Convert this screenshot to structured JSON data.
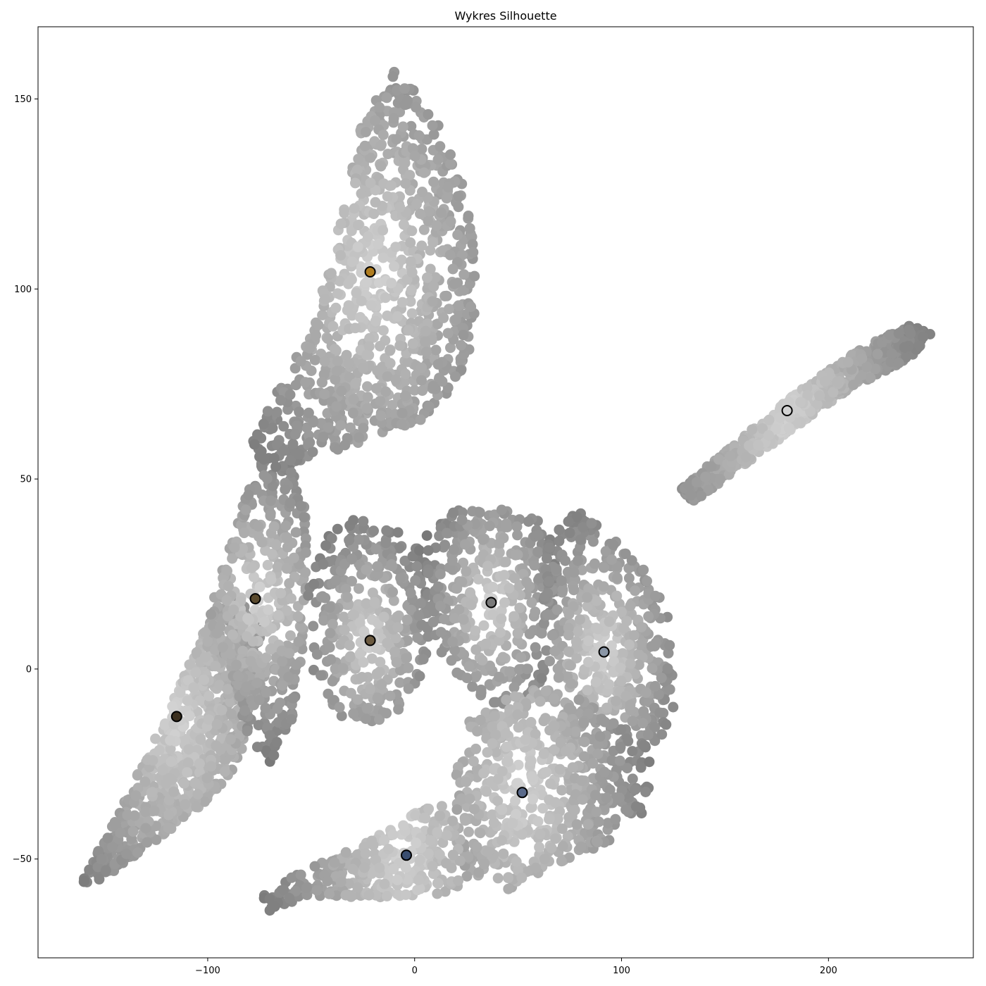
{
  "chart_data": {
    "type": "scatter",
    "title": "Wykres Silhouette",
    "xlabel": "",
    "ylabel": "",
    "xlim": [
      -182,
      270
    ],
    "ylim": [
      -76,
      169
    ],
    "xticks": [
      -100,
      0,
      100,
      200
    ],
    "yticks": [
      -50,
      0,
      50,
      100,
      150
    ],
    "xtick_labels": [
      "−100",
      "0",
      "100",
      "200"
    ],
    "ytick_labels": [
      "−50",
      "0",
      "50",
      "100",
      "150"
    ],
    "grid": false,
    "legend": "none",
    "point_color_encoding": "grayscale by silhouette value (light = high, dark = low)",
    "centroids": [
      {
        "x": -115,
        "y": -12.5,
        "color": "#3b2f1e"
      },
      {
        "x": -77,
        "y": 18.5,
        "color": "#5a4a2e"
      },
      {
        "x": -21.5,
        "y": 104.5,
        "color": "#b07d20"
      },
      {
        "x": -21.5,
        "y": 7.5,
        "color": "#6b5a40"
      },
      {
        "x": 37,
        "y": 17.5,
        "color": "#7a7a7a"
      },
      {
        "x": 91.5,
        "y": 4.5,
        "color": "#8a96a6"
      },
      {
        "x": 52,
        "y": -32.5,
        "color": "#5a6a8a"
      },
      {
        "x": -4,
        "y": -49,
        "color": "#3a4e70"
      },
      {
        "x": 180,
        "y": 68,
        "color": "#d2d2d2"
      }
    ],
    "clusters": [
      {
        "polygon": [
          [
            -165,
            -58
          ],
          [
            -145,
            -40
          ],
          [
            -118,
            -10
          ],
          [
            -100,
            12
          ],
          [
            -85,
            20
          ],
          [
            -74,
            10
          ],
          [
            -78,
            -10
          ],
          [
            -85,
            -25
          ],
          [
            -100,
            -35
          ],
          [
            -125,
            -45
          ],
          [
            -150,
            -55
          ]
        ],
        "center": [
          -115,
          -12
        ]
      },
      {
        "polygon": [
          [
            -100,
            15
          ],
          [
            -85,
            40
          ],
          [
            -75,
            55
          ],
          [
            -60,
            55
          ],
          [
            -52,
            40
          ],
          [
            -52,
            20
          ],
          [
            -55,
            0
          ],
          [
            -60,
            -15
          ],
          [
            -70,
            -25
          ],
          [
            -80,
            -18
          ],
          [
            -90,
            0
          ]
        ],
        "center": [
          -75,
          18
        ]
      },
      {
        "polygon": [
          [
            -52,
            20
          ],
          [
            -45,
            35
          ],
          [
            -30,
            40
          ],
          [
            -10,
            38
          ],
          [
            5,
            30
          ],
          [
            8,
            10
          ],
          [
            2,
            -5
          ],
          [
            -10,
            -12
          ],
          [
            -25,
            -15
          ],
          [
            -40,
            -12
          ],
          [
            -50,
            0
          ]
        ],
        "center": [
          -22,
          8
        ]
      },
      {
        "polygon": [
          [
            5,
            35
          ],
          [
            20,
            42
          ],
          [
            45,
            42
          ],
          [
            65,
            38
          ],
          [
            70,
            20
          ],
          [
            65,
            0
          ],
          [
            55,
            -8
          ],
          [
            40,
            -10
          ],
          [
            25,
            -5
          ],
          [
            12,
            5
          ],
          [
            5,
            20
          ]
        ],
        "center": [
          37,
          17
        ]
      },
      {
        "polygon": [
          [
            65,
            38
          ],
          [
            80,
            42
          ],
          [
            95,
            35
          ],
          [
            115,
            25
          ],
          [
            125,
            10
          ],
          [
            125,
            -10
          ],
          [
            118,
            -20
          ],
          [
            100,
            -15
          ],
          [
            80,
            -8
          ],
          [
            65,
            0
          ],
          [
            62,
            20
          ]
        ],
        "center": [
          91,
          4
        ]
      },
      {
        "polygon": [
          [
            25,
            -12
          ],
          [
            40,
            -8
          ],
          [
            60,
            -5
          ],
          [
            80,
            -8
          ],
          [
            100,
            -15
          ],
          [
            118,
            -22
          ],
          [
            110,
            -38
          ],
          [
            95,
            -45
          ],
          [
            70,
            -52
          ],
          [
            45,
            -58
          ],
          [
            25,
            -55
          ],
          [
            18,
            -35
          ]
        ],
        "center": [
          52,
          -32
        ]
      },
      {
        "polygon": [
          [
            -75,
            -60
          ],
          [
            -55,
            -53
          ],
          [
            -40,
            -50
          ],
          [
            -20,
            -44
          ],
          [
            0,
            -38
          ],
          [
            15,
            -35
          ],
          [
            22,
            -45
          ],
          [
            22,
            -58
          ],
          [
            5,
            -60
          ],
          [
            -25,
            -60
          ],
          [
            -50,
            -60
          ],
          [
            -70,
            -64
          ]
        ],
        "center": [
          -5,
          -49
        ]
      },
      {
        "polygon": [
          [
            -80,
            58
          ],
          [
            -65,
            75
          ],
          [
            -48,
            92
          ],
          [
            -35,
            120
          ],
          [
            -25,
            145
          ],
          [
            -12,
            158
          ],
          [
            2,
            152
          ],
          [
            15,
            140
          ],
          [
            25,
            125
          ],
          [
            30,
            105
          ],
          [
            28,
            85
          ],
          [
            18,
            72
          ],
          [
            5,
            66
          ],
          [
            -15,
            62
          ],
          [
            -35,
            58
          ],
          [
            -55,
            55
          ],
          [
            -70,
            52
          ]
        ],
        "center": [
          -20,
          105
        ]
      },
      {
        "polygon": [
          [
            128,
            47
          ],
          [
            145,
            55
          ],
          [
            165,
            64
          ],
          [
            190,
            75
          ],
          [
            215,
            84
          ],
          [
            240,
            91
          ],
          [
            250,
            88
          ],
          [
            240,
            82
          ],
          [
            215,
            75
          ],
          [
            190,
            66
          ],
          [
            170,
            58
          ],
          [
            150,
            50
          ],
          [
            135,
            44
          ]
        ],
        "center": [
          180,
          68
        ]
      }
    ]
  }
}
